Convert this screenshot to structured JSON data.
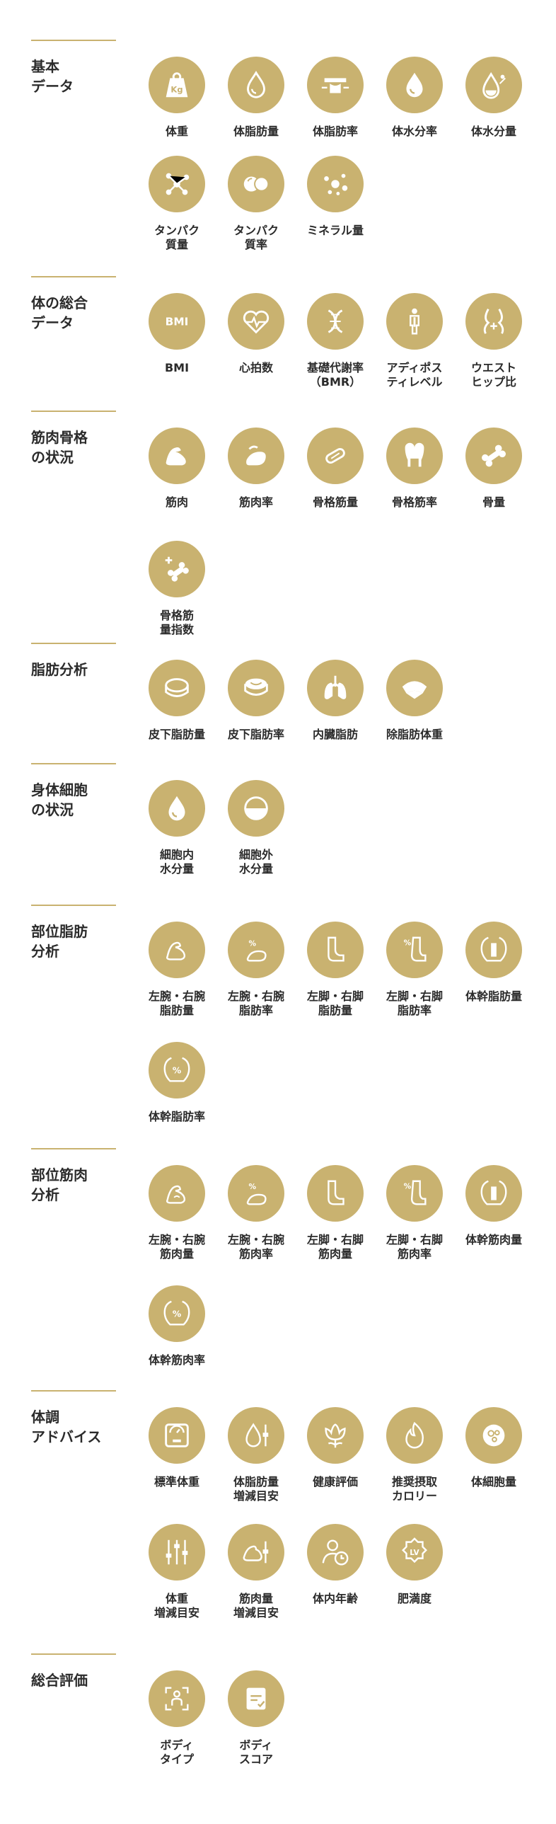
{
  "accent_color": "#c9b270",
  "sections": [
    {
      "title": "基本\nデータ",
      "items": [
        {
          "label": "体重",
          "icon": "scale-weight-icon"
        },
        {
          "label": "体脂肪量",
          "icon": "fat-drop-icon"
        },
        {
          "label": "体脂肪率",
          "icon": "waist-measure-icon"
        },
        {
          "label": "体水分率",
          "icon": "water-drop-icon"
        },
        {
          "label": "体水分量",
          "icon": "water-percent-icon"
        },
        {
          "label": "タンパク\n質量",
          "icon": "molecule-icon"
        },
        {
          "label": "タンパク\n質率",
          "icon": "protein-icon"
        },
        {
          "label": "ミネラル量",
          "icon": "mineral-dots-icon"
        }
      ]
    },
    {
      "title": "体の総合\nデータ",
      "items": [
        {
          "label": "BMI",
          "icon": "bmi-icon",
          "text": "BMI"
        },
        {
          "label": "心拍数",
          "icon": "heart-rate-icon"
        },
        {
          "label": "基礎代謝率\n（BMR）",
          "icon": "dna-icon"
        },
        {
          "label": "アディポス\nティレベル",
          "icon": "body-figure-icon"
        },
        {
          "label": "ウエスト\nヒップ比",
          "icon": "waist-hip-icon"
        }
      ]
    },
    {
      "title": "筋肉骨格\nの状況",
      "items": [
        {
          "label": "筋肉",
          "icon": "muscle-arm-icon"
        },
        {
          "label": "筋肉率",
          "icon": "muscle-percent-icon"
        },
        {
          "label": "骨格筋量",
          "icon": "skeletal-muscle-icon"
        },
        {
          "label": "骨格筋率",
          "icon": "tooth-bone-icon"
        },
        {
          "label": "骨量",
          "icon": "bone-icon"
        },
        {
          "label": "骨格筋\n量指数",
          "icon": "bone-plus-icon"
        }
      ]
    },
    {
      "title": "脂肪分析",
      "items": [
        {
          "label": "皮下脂肪量",
          "icon": "subcutaneous-fat-icon"
        },
        {
          "label": "皮下脂肪率",
          "icon": "subcutaneous-fat-rate-icon"
        },
        {
          "label": "内臓脂肪",
          "icon": "lungs-icon"
        },
        {
          "label": "除脂肪体重",
          "icon": "lean-mass-icon"
        }
      ]
    },
    {
      "title": "身体細胞\nの状況",
      "items": [
        {
          "label": "細胞内\n水分量",
          "icon": "intracellular-water-icon"
        },
        {
          "label": "細胞外\n水分量",
          "icon": "extracellular-water-icon"
        }
      ]
    },
    {
      "title": "部位脂肪\n分析",
      "items": [
        {
          "label": "左腕・右腕\n脂肪量",
          "icon": "arm-fat-icon"
        },
        {
          "label": "左腕・右腕\n脂肪率",
          "icon": "arm-fat-percent-icon",
          "text": "%"
        },
        {
          "label": "左脚・右脚\n脂肪量",
          "icon": "leg-fat-icon"
        },
        {
          "label": "左脚・右脚\n脂肪率",
          "icon": "leg-fat-percent-icon",
          "text": "%"
        },
        {
          "label": "体幹脂肪量",
          "icon": "torso-fat-icon"
        },
        {
          "label": "体幹脂肪率",
          "icon": "torso-fat-percent-icon",
          "text": "%"
        }
      ]
    },
    {
      "title": "部位筋肉\n分析",
      "items": [
        {
          "label": "左腕・右腕\n筋肉量",
          "icon": "arm-muscle-icon"
        },
        {
          "label": "左腕・右腕\n筋肉率",
          "icon": "arm-muscle-percent-icon",
          "text": "%"
        },
        {
          "label": "左脚・右脚\n筋肉量",
          "icon": "leg-muscle-icon"
        },
        {
          "label": "左脚・右脚\n筋肉率",
          "icon": "leg-muscle-percent-icon",
          "text": "%"
        },
        {
          "label": "体幹筋肉量",
          "icon": "torso-muscle-icon"
        },
        {
          "label": "体幹筋肉率",
          "icon": "torso-muscle-percent-icon",
          "text": "%"
        }
      ]
    },
    {
      "title": "体調\nアドバイス",
      "items": [
        {
          "label": "標準体重",
          "icon": "standard-weight-icon"
        },
        {
          "label": "体脂肪量\n増減目安",
          "icon": "fat-adjust-icon"
        },
        {
          "label": "健康評価",
          "icon": "flower-icon"
        },
        {
          "label": "推奨摂取\nカロリー",
          "icon": "flame-icon"
        },
        {
          "label": "体細胞量",
          "icon": "cell-icon"
        },
        {
          "label": "体重\n増減目安",
          "icon": "sliders-icon"
        },
        {
          "label": "筋肉量\n増減目安",
          "icon": "muscle-adjust-icon"
        },
        {
          "label": "体内年齢",
          "icon": "body-age-icon"
        },
        {
          "label": "肥満度",
          "icon": "level-badge-icon",
          "text": "LV"
        }
      ]
    },
    {
      "title": "総合評価",
      "items": [
        {
          "label": "ボディ\nタイプ",
          "icon": "body-type-icon"
        },
        {
          "label": "ボディ\nスコア",
          "icon": "body-score-icon"
        }
      ]
    }
  ]
}
